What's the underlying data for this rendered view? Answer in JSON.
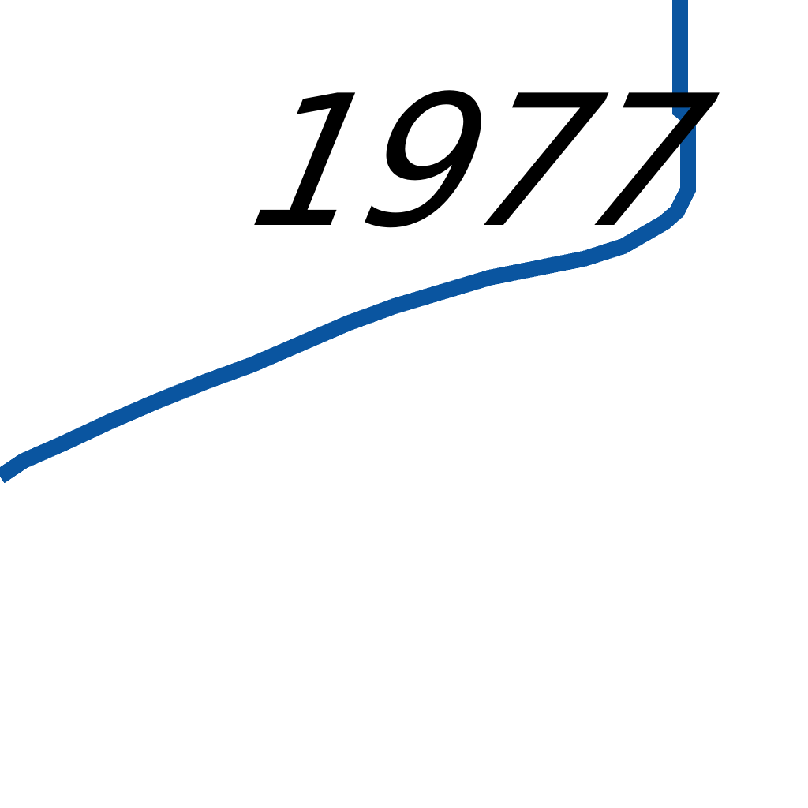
{
  "label": {
    "year": "1977"
  },
  "colors": {
    "line": "#0a55a0",
    "text": "#000000",
    "background": "#ffffff"
  }
}
